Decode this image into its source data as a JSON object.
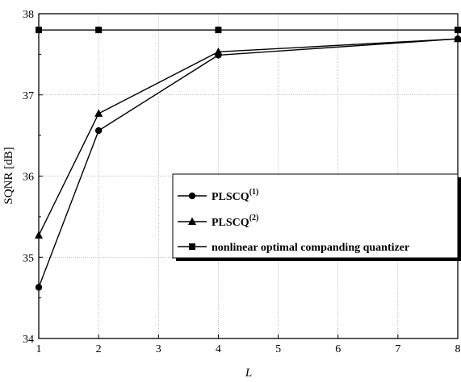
{
  "chart_data": {
    "type": "line",
    "title": "",
    "xlabel": "L",
    "ylabel": "SQNR [dB]",
    "xlim": [
      1,
      8
    ],
    "ylim": [
      34,
      38
    ],
    "x_ticks": [
      "1",
      "2",
      "3",
      "4",
      "5",
      "6",
      "7",
      "8"
    ],
    "y_ticks": [
      "34",
      "35",
      "36",
      "37",
      "38"
    ],
    "grid": true,
    "legend_position": "lower-right",
    "series": [
      {
        "name": "PLSCQ",
        "name_sup": "(1)",
        "marker": "circle",
        "color": "#000000",
        "x": [
          1,
          2,
          4,
          8
        ],
        "y": [
          34.63,
          36.56,
          37.49,
          37.69
        ]
      },
      {
        "name": "PLSCQ",
        "name_sup": "(2)",
        "marker": "triangle",
        "color": "#000000",
        "x": [
          1,
          2,
          4,
          8
        ],
        "y": [
          35.27,
          36.77,
          37.53,
          37.69
        ]
      },
      {
        "name": "nonlinear optimal companding quantizer",
        "name_sup": "",
        "marker": "square",
        "color": "#000000",
        "x": [
          1,
          2,
          4,
          8
        ],
        "y": [
          37.8,
          37.8,
          37.8,
          37.8
        ]
      }
    ]
  }
}
